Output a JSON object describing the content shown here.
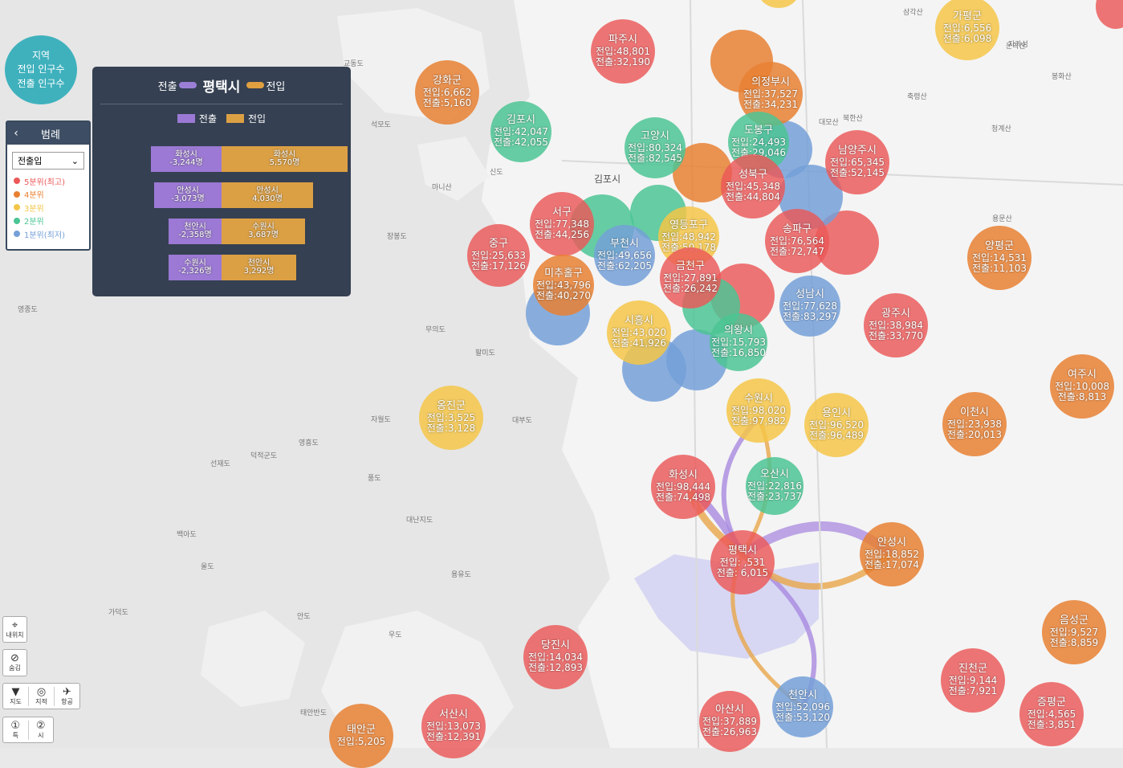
{
  "info": {
    "line1": "지역",
    "line2": "전입 인구수",
    "line3": "전출 인구수"
  },
  "legend": {
    "title": "범례",
    "select": "전출입",
    "items": [
      {
        "label": "5분위(최고)",
        "color": "#ec5858"
      },
      {
        "label": "4분위",
        "color": "#e88032"
      },
      {
        "label": "3분위",
        "color": "#f4c648"
      },
      {
        "label": "2분위",
        "color": "#4cc494"
      },
      {
        "label": "1분위(최저)",
        "color": "#74a0d8"
      }
    ]
  },
  "flow_panel": {
    "out_label": "전출",
    "city": "평택시",
    "in_label": "전입",
    "key_out": "전출",
    "key_in": "전입",
    "rows": [
      {
        "out_name": "화성시",
        "out_value": "-3,244명",
        "in_name": "화성시",
        "in_value": "5,570명"
      },
      {
        "out_name": "안성시",
        "out_value": "-3,073명",
        "in_name": "안성시",
        "in_value": "4,030명"
      },
      {
        "out_name": "천안시",
        "out_value": "-2,358명",
        "in_name": "수원시",
        "in_value": "3,687명"
      },
      {
        "out_name": "수원시",
        "out_value": "-2,326명",
        "in_name": "천안시",
        "in_value": "3,292명"
      }
    ],
    "out_values": [
      3244,
      3073,
      2358,
      2326
    ],
    "in_values": [
      5570,
      4030,
      3687,
      3292
    ]
  },
  "regions": [
    {
      "name": "파주시",
      "in": "전입:48,801",
      "out": "전출:32,190",
      "q": 5
    },
    {
      "name": "가평군",
      "in": "전입:6,556",
      "out": "전출:6,098",
      "q": 3
    },
    {
      "name": "강화군",
      "in": "전입:6,662",
      "out": "전출:5,160",
      "q": 4
    },
    {
      "name": "의정부시",
      "in": "전입:37,527",
      "out": "전출:34,231",
      "q": 4
    },
    {
      "name": "김포시",
      "in": "전입:42,047",
      "out": "전출:42,055",
      "q": 2
    },
    {
      "name": "고양시",
      "in": "전입:80,324",
      "out": "전출:82,545",
      "q": 2
    },
    {
      "name": "도봉구",
      "in": "전입:24,493",
      "out": "전출:29,046",
      "q": 2
    },
    {
      "name": "남양주시",
      "in": "전입:65,345",
      "out": "전출:52,145",
      "q": 5
    },
    {
      "name": "성북구",
      "in": "전입:45,348",
      "out": "전출:44,804",
      "q": 5
    },
    {
      "name": "서구",
      "in": "전입:77,348",
      "out": "전출:44,256",
      "q": 5
    },
    {
      "name": "영등포구",
      "in": "전입:48,942",
      "out": "전출:50,178",
      "q": 3
    },
    {
      "name": "송파구",
      "in": "전입:76,564",
      "out": "전출:72,747",
      "q": 5
    },
    {
      "name": "중구",
      "in": "전입:25,633",
      "out": "전출:17,126",
      "q": 5
    },
    {
      "name": "부천시",
      "in": "전입:49,656",
      "out": "전출:62,205",
      "q": 1
    },
    {
      "name": "양평군",
      "in": "전입:14,531",
      "out": "전출:11,103",
      "q": 4
    },
    {
      "name": "미추홀구",
      "in": "전입:43,796",
      "out": "전출:40,270",
      "q": 4
    },
    {
      "name": "금천구",
      "in": "전입:27,891",
      "out": "전출:26,242",
      "q": 5
    },
    {
      "name": "성남시",
      "in": "전입:77,628",
      "out": "전출:83,297",
      "q": 1
    },
    {
      "name": "광주시",
      "in": "전입:38,984",
      "out": "전출:33,770",
      "q": 5
    },
    {
      "name": "시흥시",
      "in": "전입:43,020",
      "out": "전출:41,926",
      "q": 3
    },
    {
      "name": "의왕시",
      "in": "전입:15,793",
      "out": "전출:16,850",
      "q": 2
    },
    {
      "name": "여주시",
      "in": "전입:10,008",
      "out": "전출:8,813",
      "q": 4
    },
    {
      "name": "옹진군",
      "in": "전입:3,525",
      "out": "전출:3,128",
      "q": 3
    },
    {
      "name": "수원시",
      "in": "전입:98,020",
      "out": "전출:97,982",
      "q": 3
    },
    {
      "name": "용인시",
      "in": "전입:96,520",
      "out": "전출:96,489",
      "q": 3
    },
    {
      "name": "이천시",
      "in": "전입:23,938",
      "out": "전출:20,013",
      "q": 4
    },
    {
      "name": "화성시",
      "in": "전입:98,444",
      "out": "전출:74,498",
      "q": 5
    },
    {
      "name": "오산시",
      "in": "전입:22,816",
      "out": "전출:23,737",
      "q": 2
    },
    {
      "name": "평택시",
      "in": "전입:  ,531",
      "out": "전출:  6,015",
      "q": 5
    },
    {
      "name": "안성시",
      "in": "전입:18,852",
      "out": "전출:17,074",
      "q": 4
    },
    {
      "name": "음성군",
      "in": "전입:9,527",
      "out": "전출:8,859",
      "q": 4
    },
    {
      "name": "당진시",
      "in": "전입:14,034",
      "out": "전출:12,893",
      "q": 5
    },
    {
      "name": "진천군",
      "in": "전입:9,144",
      "out": "전출:7,921",
      "q": 5
    },
    {
      "name": "천안시",
      "in": "전입:52,096",
      "out": "전출:53,120",
      "q": 1
    },
    {
      "name": "아산시",
      "in": "전입:37,889",
      "out": "전출:26,963",
      "q": 5
    },
    {
      "name": "서산시",
      "in": "전입:13,073",
      "out": "전출:12,391",
      "q": 5
    },
    {
      "name": "태안군",
      "in": "전입:5,205",
      "out": "",
      "q": 4
    },
    {
      "name": "증평군",
      "in": "전입:4,565",
      "out": "전출:3,851",
      "q": 5
    }
  ],
  "map_labels": [
    "김포시",
    "교동도",
    "석모도",
    "영종도",
    "대부도",
    "자월도",
    "덕적군도",
    "영흥도",
    "선재도",
    "풍도",
    "대난지도",
    "태안반도",
    "가덕도",
    "안도",
    "우도",
    "백아도",
    "울도",
    "용유도",
    "장봉도",
    "마니산",
    "신도",
    "무의도",
    "삼각산",
    "북한산",
    "축령산",
    "운악산",
    "자라섬",
    "봉화산",
    "청계산",
    "용문산",
    "대모산",
    "팔미도"
  ],
  "controls": {
    "mylocation": "내위치",
    "hide": "숨김",
    "map": "지도",
    "terrain": "지적",
    "aerial": "항공",
    "level1": "특",
    "level2": "시"
  }
}
